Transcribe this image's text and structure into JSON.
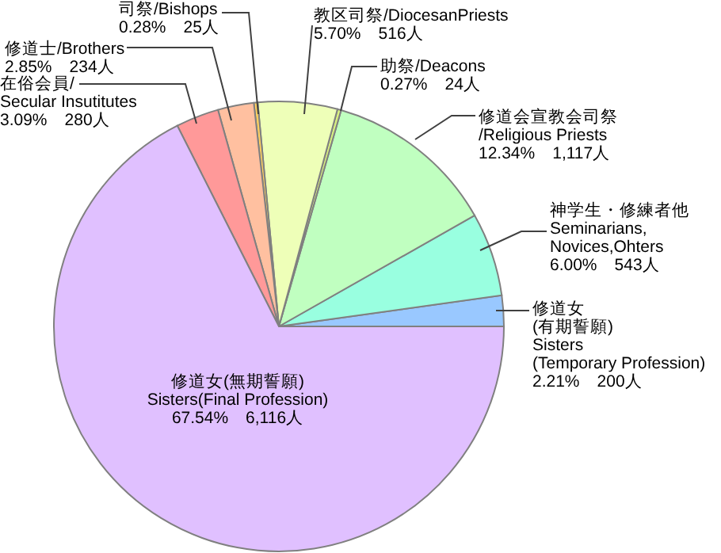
{
  "chart_data": {
    "type": "pie",
    "categories": [
      "修道女\n(有期誓願)\nSisters\n(Temporary Profession)",
      "神学生・修練者他\nSeminarians,\nNovices,Ohters",
      "修道会宣教会司祭\n/Religious Priests",
      "助祭/Deacons",
      "教区司祭/DiocesanPriests",
      "司祭/Bishops",
      "修道士/Brothers",
      "在俗会員/\nSecular Insutitutes",
      "修道女(無期誓願)\nSisters(Final Profession)"
    ],
    "values": [
      200,
      543,
      1117,
      24,
      516,
      25,
      234,
      280,
      6116
    ],
    "value_labels": [
      "2.21%　200人",
      "6.00%　543人",
      "12.34%　1,117人",
      "0.27%　24人",
      "5.70%　516人",
      "0.28%　25人",
      "2.85%　234人",
      "3.09%　280人",
      "67.54%　6,116人"
    ],
    "colors": [
      "#99c8ff",
      "#99ffe0",
      "#c0ffc0",
      "#d8f080",
      "#eeffb8",
      "#ffd060",
      "#ffc0a0",
      "#ff9999",
      "#e0c0ff"
    ]
  }
}
